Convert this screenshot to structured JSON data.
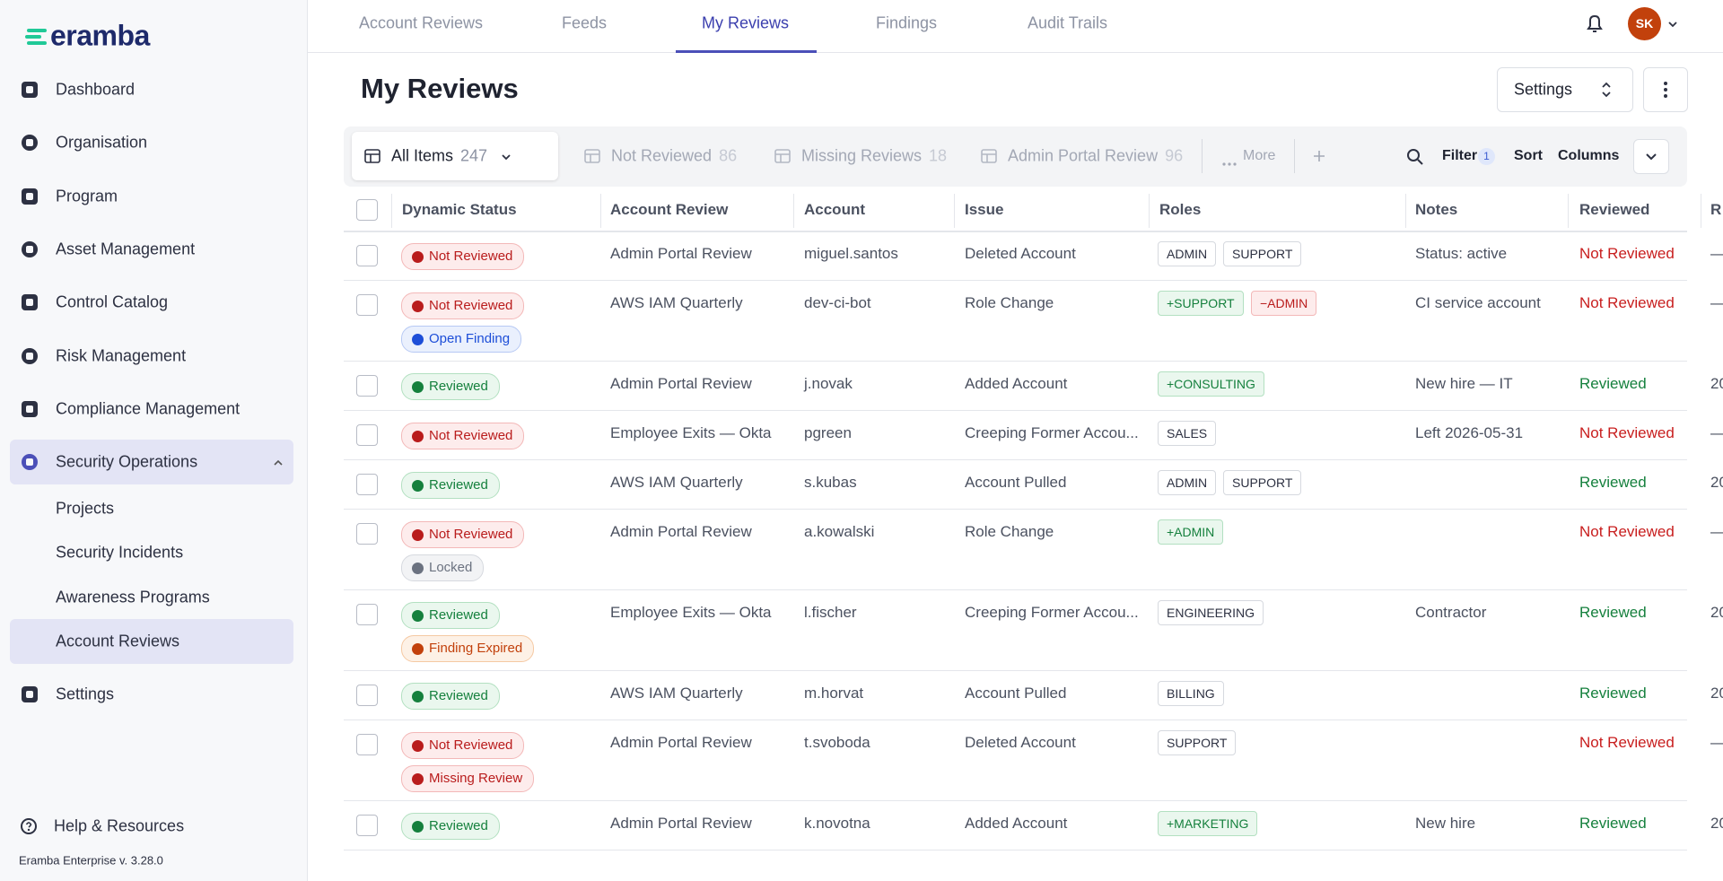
{
  "brand": "eramba",
  "sidebar": {
    "items": [
      {
        "label": "Dashboard"
      },
      {
        "label": "Organisation"
      },
      {
        "label": "Program"
      },
      {
        "label": "Asset Management"
      },
      {
        "label": "Control Catalog"
      },
      {
        "label": "Risk Management"
      },
      {
        "label": "Compliance Management"
      },
      {
        "label": "Security Operations",
        "children": [
          "Projects",
          "Security Incidents",
          "Awareness Programs",
          "Account Reviews"
        ]
      },
      {
        "label": "Settings"
      }
    ],
    "help": "Help & Resources",
    "version": "Eramba Enterprise v. 3.28.0"
  },
  "tabs": [
    "Account Reviews",
    "Feeds",
    "My Reviews",
    "Findings",
    "Audit Trails"
  ],
  "user_initials": "SK",
  "page_title": "My Reviews",
  "settings_button": "Settings",
  "views": [
    {
      "label": "All Items",
      "count": 247
    },
    {
      "label": "Not Reviewed",
      "count": 86
    },
    {
      "label": "Missing Reviews",
      "count": 18
    },
    {
      "label": "Admin Portal Review",
      "count": 96
    }
  ],
  "more": "More",
  "filter": "Filter",
  "filter_count": 1,
  "sort": "Sort",
  "columns_button": "Columns",
  "table": {
    "columns": [
      "Dynamic Status",
      "Account Review",
      "Account",
      "Issue",
      "Roles",
      "Notes",
      "Reviewed",
      "R"
    ],
    "rows": [
      {
        "status": [
          {
            "label": "Not Reviewed",
            "kind": "red"
          }
        ],
        "account_review": "Admin Portal Review",
        "account": "miguel.santos",
        "issue": "Deleted Account",
        "roles": [
          {
            "label": "ADMIN",
            "kind": "gray"
          },
          {
            "label": "SUPPORT",
            "kind": "gray"
          }
        ],
        "notes": "Status: active",
        "reviewed": "Not Reviewed",
        "r": "—"
      },
      {
        "status": [
          {
            "label": "Not Reviewed",
            "kind": "red"
          },
          {
            "label": "Open Finding",
            "kind": "blue"
          }
        ],
        "account_review": "AWS IAM Quarterly",
        "account": "dev-ci-bot",
        "issue": "Role Change",
        "roles": [
          {
            "label": "+SUPPORT",
            "kind": "green"
          },
          {
            "label": "−ADMIN",
            "kind": "red"
          }
        ],
        "notes": "CI service account",
        "reviewed": "Not Reviewed",
        "r": "—"
      },
      {
        "status": [
          {
            "label": "Reviewed",
            "kind": "green"
          }
        ],
        "account_review": "Admin Portal Review",
        "account": "j.novak",
        "issue": "Added Account",
        "roles": [
          {
            "label": "+CONSULTING",
            "kind": "green"
          }
        ],
        "notes": "New hire — IT",
        "reviewed": "Reviewed",
        "r": "20"
      },
      {
        "status": [
          {
            "label": "Not Reviewed",
            "kind": "red"
          }
        ],
        "account_review": "Employee Exits — Okta",
        "account": "pgreen",
        "issue": "Creeping Former Accou...",
        "roles": [
          {
            "label": "SALES",
            "kind": "gray"
          }
        ],
        "notes": "Left 2026-05-31",
        "reviewed": "Not Reviewed",
        "r": "—"
      },
      {
        "status": [
          {
            "label": "Reviewed",
            "kind": "green"
          }
        ],
        "account_review": "AWS IAM Quarterly",
        "account": "s.kubas",
        "issue": "Account Pulled",
        "roles": [
          {
            "label": "ADMIN",
            "kind": "gray"
          },
          {
            "label": "SUPPORT",
            "kind": "gray"
          }
        ],
        "notes": null,
        "reviewed": "Reviewed",
        "r": "20"
      },
      {
        "status": [
          {
            "label": "Not Reviewed",
            "kind": "red"
          },
          {
            "label": "Locked",
            "kind": "gray"
          }
        ],
        "account_review": "Admin Portal Review",
        "account": "a.kowalski",
        "issue": "Role Change",
        "roles": [
          {
            "label": "+ADMIN",
            "kind": "green"
          }
        ],
        "notes": null,
        "reviewed": "Not Reviewed",
        "r": "—"
      },
      {
        "status": [
          {
            "label": "Reviewed",
            "kind": "green"
          },
          {
            "label": "Finding Expired",
            "kind": "orange"
          }
        ],
        "account_review": "Employee Exits — Okta",
        "account": "l.fischer",
        "issue": "Creeping Former Accou...",
        "roles": [
          {
            "label": "ENGINEERING",
            "kind": "gray"
          }
        ],
        "notes": "Contractor",
        "reviewed": "Reviewed",
        "r": "20"
      },
      {
        "status": [
          {
            "label": "Reviewed",
            "kind": "green"
          }
        ],
        "account_review": "AWS IAM Quarterly",
        "account": "m.horvat",
        "issue": "Account Pulled",
        "roles": [
          {
            "label": "BILLING",
            "kind": "gray"
          }
        ],
        "notes": null,
        "reviewed": "Reviewed",
        "r": "20"
      },
      {
        "status": [
          {
            "label": "Not Reviewed",
            "kind": "red"
          },
          {
            "label": "Missing Review",
            "kind": "red"
          }
        ],
        "account_review": "Admin Portal Review",
        "account": "t.svoboda",
        "issue": "Deleted Account",
        "roles": [
          {
            "label": "SUPPORT",
            "kind": "gray"
          }
        ],
        "notes": null,
        "reviewed": "Not Reviewed",
        "r": "—"
      },
      {
        "status": [
          {
            "label": "Reviewed",
            "kind": "green"
          }
        ],
        "account_review": "Admin Portal Review",
        "account": "k.novotna",
        "issue": "Added Account",
        "roles": [
          {
            "label": "+MARKETING",
            "kind": "green"
          }
        ],
        "notes": "New hire",
        "reviewed": "Reviewed",
        "r": "20"
      }
    ]
  }
}
